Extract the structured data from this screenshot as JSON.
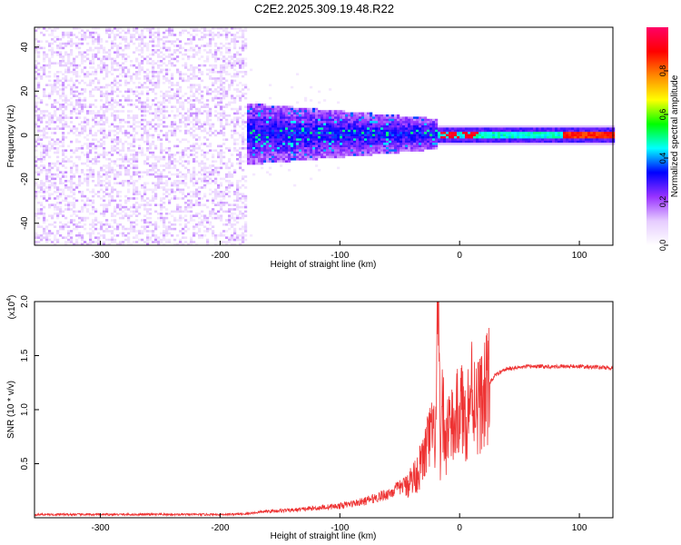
{
  "figure": {
    "title": "C2E2.2025.309.19.48.R22"
  },
  "chart_data": [
    {
      "type": "heatmap",
      "xlabel": "Height of straight line (km)",
      "ylabel": "Frequency (Hz)",
      "xlim": [
        -355,
        128
      ],
      "ylim": [
        -50,
        49
      ],
      "x_ticks": [
        -300,
        -200,
        -100,
        0,
        100
      ],
      "y_ticks": [
        -40,
        -20,
        0,
        20,
        40
      ],
      "colorbar": {
        "label": "Normalized spectral amplitude",
        "range": [
          0.0,
          1.0
        ],
        "ticks": [
          "0.0",
          "0.2",
          "0.4",
          "0.6",
          "0.8"
        ],
        "tick_values": [
          0.0,
          0.2,
          0.4,
          0.6,
          0.8
        ],
        "colors": [
          "#ffffff",
          "#e6ccff",
          "#9933ff",
          "#0000ff",
          "#00ffff",
          "#00ff00",
          "#ffff00",
          "#ff8800",
          "#ff0000",
          "#ff0066"
        ]
      },
      "regions": [
        {
          "x_range": [
            -355,
            -178
          ],
          "freq_halfwidth": 49,
          "amplitude": 0.12,
          "description_level": "noise"
        },
        {
          "x_range": [
            -178,
            -20
          ],
          "freq_halfwidth_start": 14,
          "freq_halfwidth_end": 7,
          "amplitude": 0.3
        },
        {
          "x_range": [
            -20,
            128
          ],
          "freq_halfwidth": 3,
          "amplitude": 0.55
        }
      ]
    },
    {
      "type": "line",
      "xlabel": "Height of straight line (km)",
      "ylabel": "SNR (10 * v/v)",
      "y_multiplier": "(x10",
      "y_multiplier_exp": "4",
      "y_multiplier_close": ")",
      "xlim": [
        -355,
        128
      ],
      "ylim": [
        0,
        2.0
      ],
      "x_ticks": [
        -300,
        -200,
        -100,
        0,
        100
      ],
      "y_ticks": [
        0.5,
        1.0,
        1.5,
        2.0
      ],
      "y_tick_labels": [
        "0.5",
        "1.0",
        "1.5",
        "2.0"
      ],
      "series": [
        {
          "name": "SNR",
          "color": "#ee3333",
          "x": [
            -355,
            -300,
            -250,
            -200,
            -180,
            -160,
            -140,
            -120,
            -100,
            -80,
            -60,
            -50,
            -40,
            -35,
            -30,
            -25,
            -20,
            -18,
            -16,
            -14,
            -12,
            -10,
            -5,
            0,
            5,
            10,
            15,
            20,
            25,
            30,
            40,
            60,
            80,
            100,
            120,
            128
          ],
          "y": [
            0.03,
            0.03,
            0.03,
            0.03,
            0.035,
            0.06,
            0.07,
            0.09,
            0.11,
            0.15,
            0.22,
            0.28,
            0.35,
            0.42,
            0.55,
            0.75,
            0.75,
            1.9,
            0.5,
            1.1,
            0.6,
            0.9,
            0.8,
            1.05,
            0.9,
            1.2,
            1.05,
            1.1,
            1.25,
            1.32,
            1.38,
            1.4,
            1.4,
            1.4,
            1.39,
            1.38
          ],
          "noise_amplitude": 0.015
        }
      ]
    }
  ]
}
